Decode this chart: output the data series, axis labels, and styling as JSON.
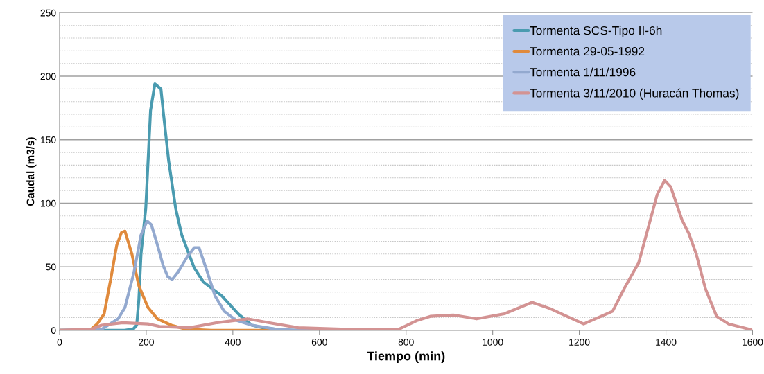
{
  "chart_data": {
    "type": "line",
    "xlabel": "Tiempo (min)",
    "ylabel": "Caudal (m3/s)",
    "xlim": [
      0,
      1600
    ],
    "xticks": [
      0,
      200,
      400,
      600,
      800,
      1000,
      1200,
      1400,
      1600
    ],
    "ylim": [
      0,
      250
    ],
    "yticks": [
      0,
      {
        "value": 10,
        "label": null
      },
      {
        "value": 20,
        "label": null
      },
      {
        "value": 30,
        "label": null
      },
      {
        "value": 40,
        "label": null
      },
      50,
      {
        "value": 60,
        "label": null
      },
      {
        "value": 70,
        "label": null
      },
      {
        "value": 80,
        "label": null
      },
      {
        "value": 90,
        "label": null
      },
      100,
      {
        "value": 110,
        "label": null
      },
      {
        "value": 120,
        "label": null
      },
      {
        "value": 130,
        "label": null
      },
      {
        "value": 140,
        "label": null
      },
      150,
      {
        "value": 160,
        "label": null
      },
      {
        "value": 170,
        "label": null
      },
      {
        "value": 180,
        "label": null
      },
      {
        "value": 190,
        "label": null
      },
      200,
      {
        "value": 210,
        "label": null
      },
      {
        "value": 220,
        "label": null
      },
      {
        "value": 230,
        "label": null
      },
      {
        "value": 240,
        "label": null
      },
      250
    ],
    "grid": "y",
    "legend": "top right",
    "marker": "none",
    "line_style": "solid",
    "series": [
      {
        "name": "Tormenta SCS-Tipo II-6h",
        "color": "#4a9bb0",
        "x": [
          0,
          150,
          170,
          178,
          183,
          188,
          199,
          210,
          220,
          234,
          240,
          252,
          268,
          282,
          311,
          332,
          375,
          412,
          444,
          470,
          520,
          600
        ],
        "values": [
          0,
          0,
          1,
          4,
          24,
          60,
          96,
          173,
          194,
          190,
          170,
          133,
          96,
          75,
          49,
          38,
          27,
          13,
          4,
          2,
          0,
          0
        ]
      },
      {
        "name": "Tormenta 29-05-1992",
        "color": "#e08a3c",
        "x": [
          0,
          70,
          87,
          103,
          119,
          132,
          143,
          151,
          167,
          183,
          204,
          226,
          258,
          290,
          350,
          500
        ],
        "values": [
          0,
          0,
          5,
          13,
          42,
          67,
          77,
          78,
          60,
          35,
          18,
          9,
          4,
          1,
          0,
          0
        ]
      },
      {
        "name": "Tormenta 1/11/1996",
        "color": "#93a9cf",
        "x": [
          0,
          98,
          135,
          151,
          172,
          188,
          202,
          212,
          226,
          239,
          250,
          260,
          274,
          295,
          311,
          322,
          338,
          359,
          380,
          407,
          444,
          498,
          550,
          600
        ],
        "values": [
          0,
          1,
          9,
          18,
          46,
          75,
          86,
          83,
          67,
          51,
          42,
          40,
          46,
          58,
          65,
          65,
          49,
          27,
          15,
          8,
          4,
          1,
          0,
          0
        ]
      },
      {
        "name": "Tormenta 3/11/2010 (Huracán Thomas)",
        "color": "#d39393",
        "x": [
          0,
          75,
          97,
          146,
          204,
          231,
          300,
          364,
          434,
          482,
          551,
          650,
          781,
          824,
          856,
          909,
          963,
          1027,
          1091,
          1133,
          1165,
          1210,
          1277,
          1304,
          1337,
          1357,
          1380,
          1397,
          1411,
          1437,
          1453,
          1470,
          1491,
          1517,
          1545,
          1597
        ],
        "values": [
          0,
          1,
          4,
          6,
          5,
          3,
          2,
          6,
          9,
          6,
          2,
          1,
          0.5,
          7.5,
          11,
          12,
          9,
          13,
          22,
          17,
          12,
          5,
          15,
          33,
          53,
          78,
          107,
          118,
          113,
          87,
          76,
          60,
          33,
          11,
          5,
          0.5
        ]
      }
    ]
  }
}
